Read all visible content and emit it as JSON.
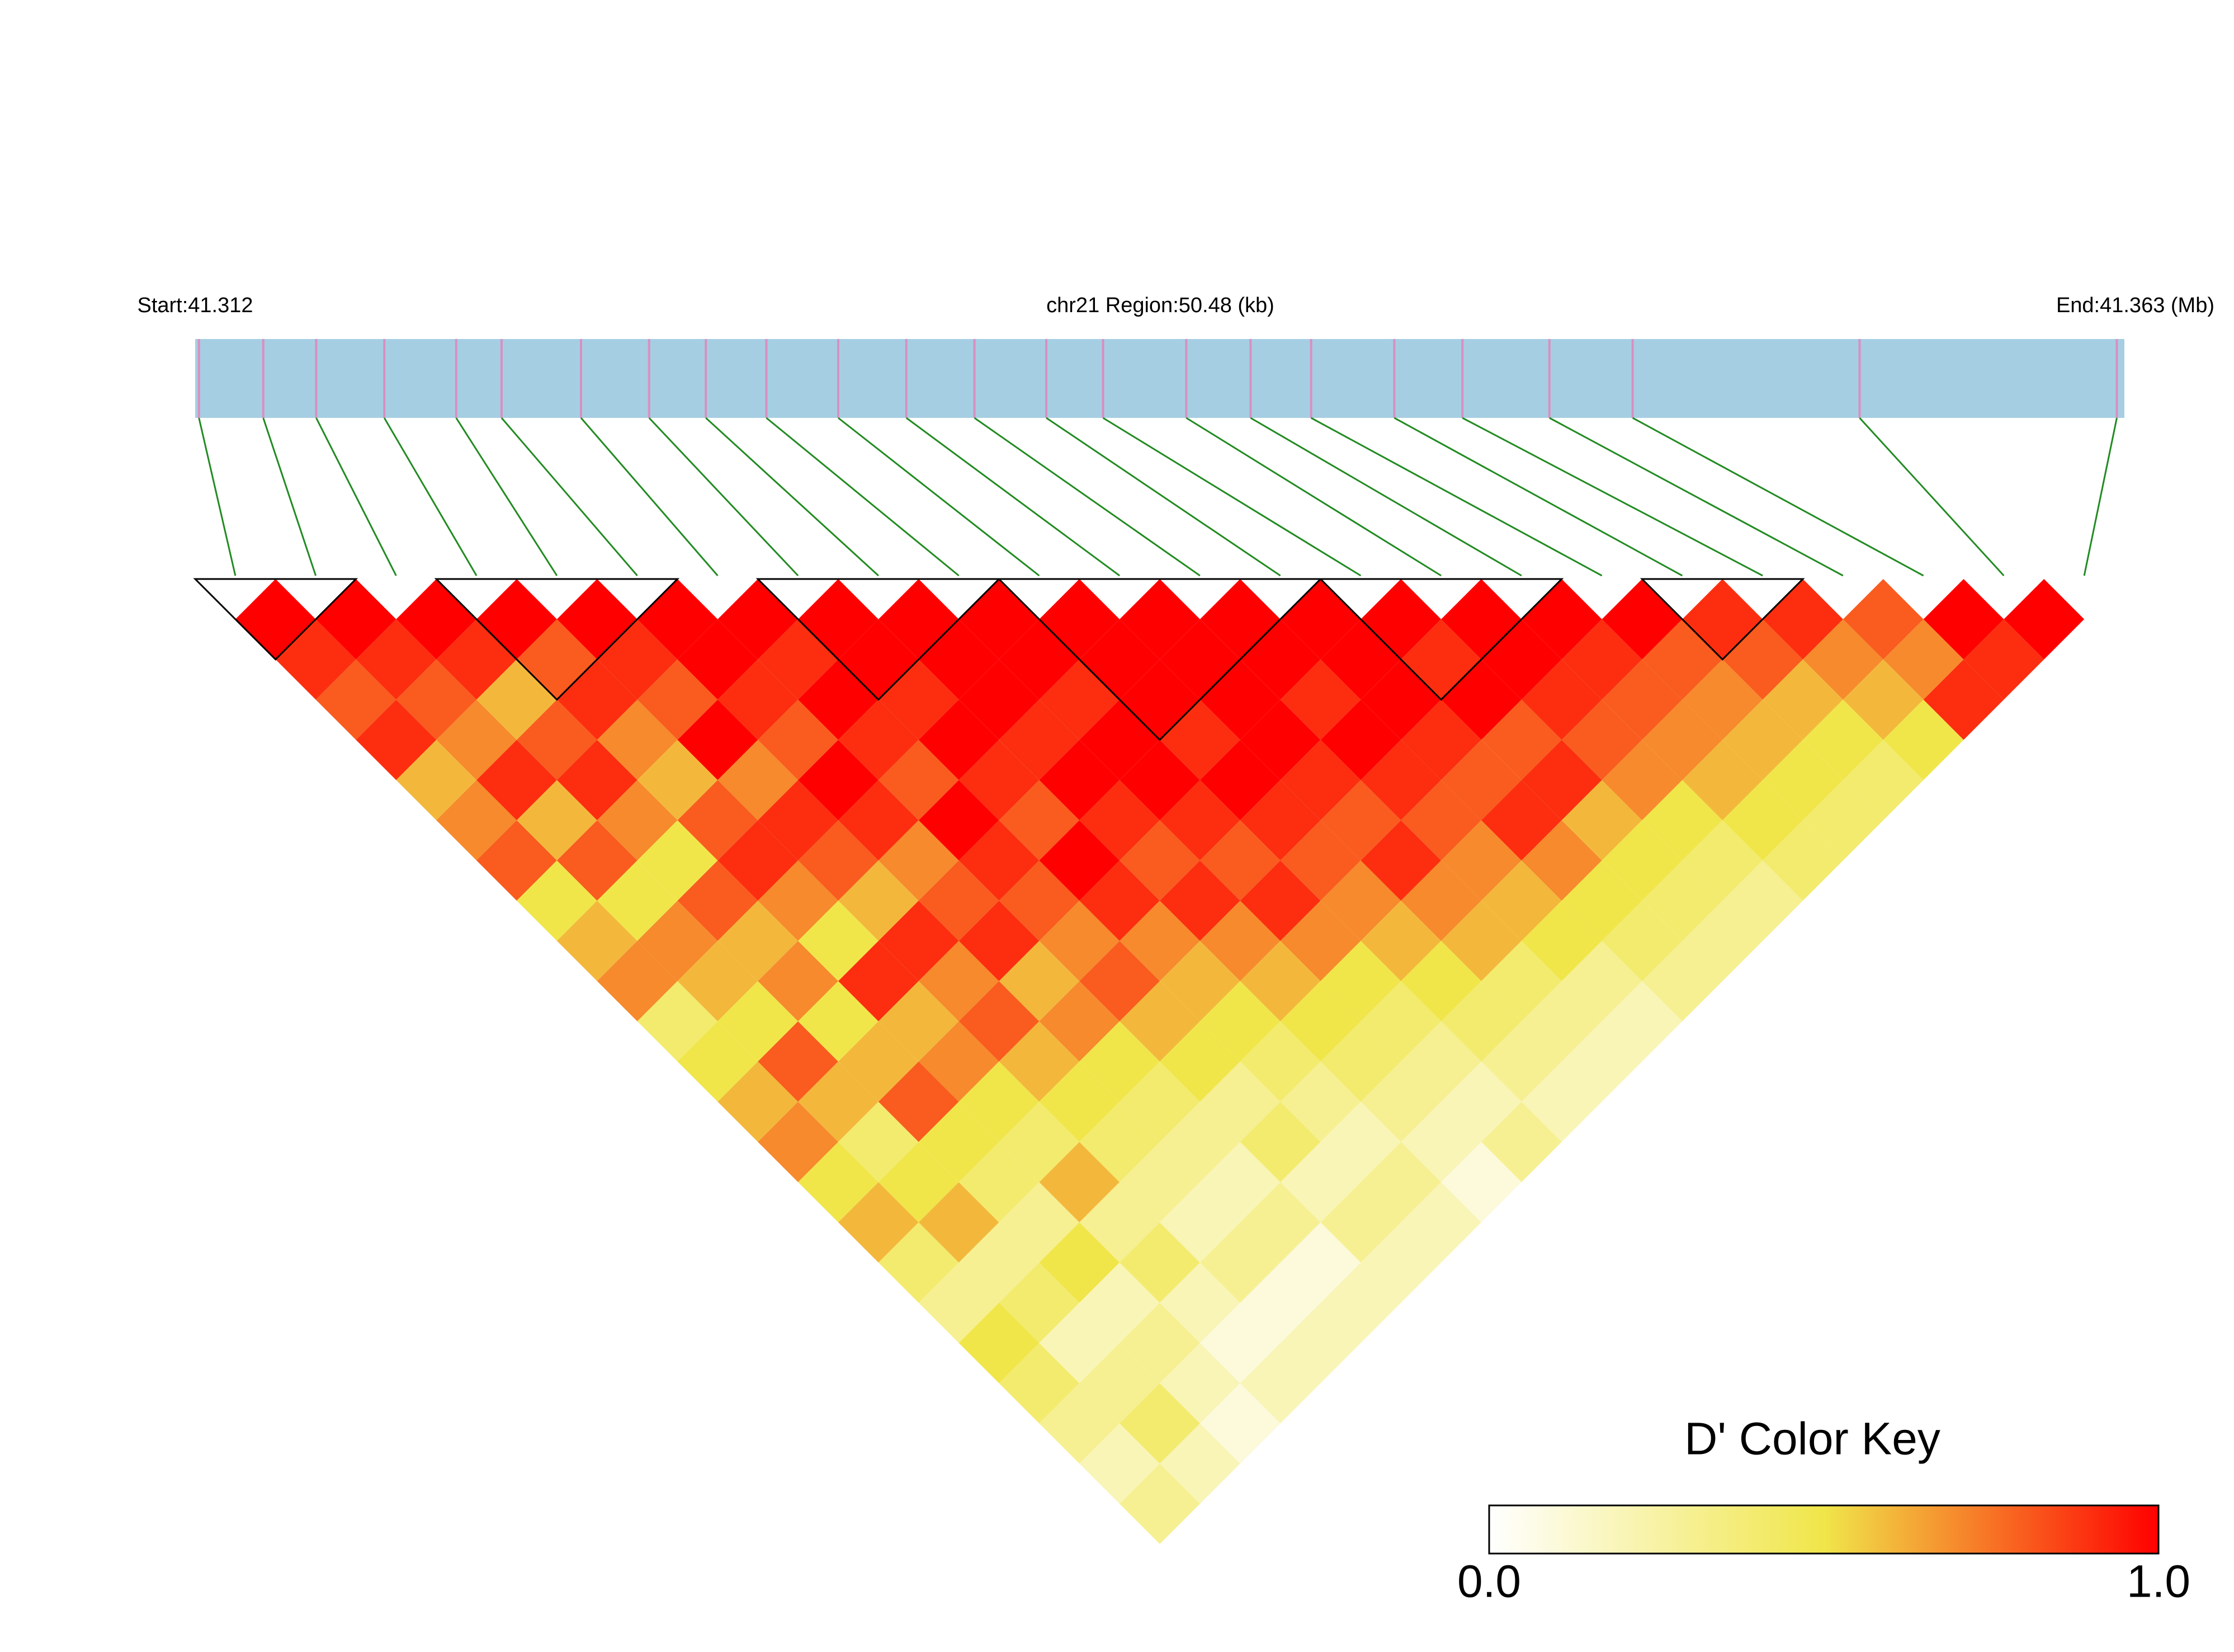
{
  "chart_data": {
    "type": "ld_heatmap",
    "start_label": "Start:41.312",
    "region_label": "chr21 Region:50.48 (kb)",
    "end_label": "End:41.363 (Mb)",
    "xlim": [
      41.312,
      41.363
    ],
    "snp_positions": [
      41.3121,
      41.3138,
      41.3152,
      41.317,
      41.3189,
      41.3201,
      41.3222,
      41.324,
      41.3255,
      41.3271,
      41.329,
      41.3308,
      41.3326,
      41.3345,
      41.336,
      41.3382,
      41.3399,
      41.3415,
      41.3437,
      41.3455,
      41.3478,
      41.35,
      41.356,
      41.3628
    ],
    "d_prime": [
      [
        1,
        0.9,
        0.8,
        0.9,
        0.6,
        0.7,
        0.8,
        0.5,
        0.6,
        0.7,
        0.4,
        0.5,
        0.6,
        0.7,
        0.5,
        0.6,
        0.4,
        0.3,
        0.5,
        0.4,
        0.3,
        0.2,
        0.3
      ],
      [
        1,
        0.9,
        0.8,
        0.7,
        0.9,
        0.6,
        0.8,
        0.5,
        0.7,
        0.6,
        0.5,
        0.8,
        0.6,
        0.4,
        0.5,
        0.6,
        0.3,
        0.4,
        0.2,
        0.3,
        0.4,
        0.2
      ],
      [
        1,
        0.9,
        0.6,
        0.8,
        0.9,
        0.7,
        0.5,
        0.8,
        0.6,
        0.7,
        0.5,
        0.6,
        0.8,
        0.5,
        0.4,
        0.3,
        0.5,
        0.2,
        0.3,
        0.2,
        0.1
      ],
      [
        1,
        0.8,
        0.9,
        0.7,
        0.6,
        0.8,
        0.9,
        0.7,
        0.5,
        0.9,
        0.6,
        0.7,
        0.5,
        0.4,
        0.6,
        0.3,
        0.4,
        0.2,
        0.1,
        0.2
      ],
      [
        1,
        0.9,
        0.8,
        1,
        0.7,
        0.9,
        0.8,
        0.6,
        0.9,
        0.7,
        0.8,
        0.6,
        0.5,
        0.4,
        0.3,
        0.2,
        0.3,
        0.1,
        0.2
      ],
      [
        1,
        1,
        0.9,
        0.8,
        1,
        0.9,
        0.7,
        0.8,
        0.9,
        0.6,
        0.7,
        0.5,
        0.4,
        0.3,
        0.2,
        0.3,
        0.1,
        0.2
      ],
      [
        1,
        0.9,
        1,
        0.9,
        0.8,
        1,
        0.9,
        0.8,
        0.7,
        0.8,
        0.6,
        0.5,
        0.3,
        0.4,
        0.2,
        0.3,
        0.2
      ],
      [
        1,
        1,
        0.9,
        1,
        0.9,
        0.8,
        1,
        0.9,
        0.7,
        0.6,
        0.5,
        0.4,
        0.3,
        0.2,
        0.3,
        0.2
      ],
      [
        1,
        1,
        1,
        0.9,
        1,
        0.9,
        0.8,
        0.9,
        0.7,
        0.6,
        0.5,
        0.4,
        0.3,
        0.2,
        0.1
      ],
      [
        1,
        1,
        0.9,
        1,
        1,
        0.9,
        0.8,
        0.9,
        0.7,
        0.5,
        0.4,
        0.3,
        0.2,
        0.3
      ],
      [
        1,
        1,
        1,
        0.9,
        1,
        0.9,
        0.8,
        0.7,
        0.6,
        0.5,
        0.4,
        0.3,
        0.2
      ],
      [
        1,
        1,
        1,
        1,
        0.9,
        0.8,
        0.9,
        0.7,
        0.6,
        0.4,
        0.3,
        0.2
      ],
      [
        1,
        1,
        0.9,
        1,
        0.9,
        0.8,
        0.7,
        0.6,
        0.5,
        0.3,
        0.2
      ],
      [
        1,
        1,
        1,
        0.9,
        0.8,
        0.9,
        0.7,
        0.5,
        0.4,
        0.3
      ],
      [
        1,
        0.9,
        1,
        0.8,
        0.9,
        0.6,
        0.5,
        0.4,
        0.3
      ],
      [
        1,
        1,
        0.9,
        0.8,
        0.7,
        0.5,
        0.4,
        0.3
      ],
      [
        1,
        0.9,
        0.8,
        0.7,
        0.6,
        0.5,
        0.4
      ],
      [
        1,
        0.8,
        0.7,
        0.6,
        0.5,
        0.4
      ],
      [
        0.9,
        0.8,
        0.6,
        0.5,
        0.4
      ],
      [
        0.9,
        0.7,
        0.6,
        0.5
      ],
      [
        0.8,
        0.7,
        0.9
      ],
      [
        1,
        0.9
      ],
      [
        1
      ]
    ],
    "blocks": [
      [
        0,
        1
      ],
      [
        3,
        5
      ],
      [
        7,
        9
      ],
      [
        10,
        13
      ],
      [
        14,
        16
      ],
      [
        18,
        19
      ]
    ],
    "bar_color": "#a6cee3",
    "snp_line_color": "#d98fc0",
    "connector_color": "#228b22",
    "color_scale": [
      "#ffffff",
      "#f0e64a",
      "#ff0000"
    ],
    "key_title": "D' Color Key",
    "key_lim": [
      0,
      1
    ],
    "key_ticks": [
      {
        "value": 0,
        "label": "0.0"
      },
      {
        "value": 1,
        "label": "1.0"
      }
    ]
  }
}
